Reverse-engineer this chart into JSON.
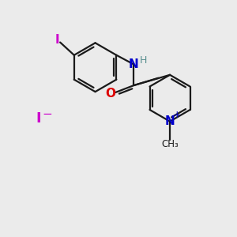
{
  "bg_color": "#ebebeb",
  "bond_color": "#1a1a1a",
  "N_color": "#0000cc",
  "O_color": "#dd0000",
  "I_color": "#cc00cc",
  "H_color": "#5a9090",
  "Iion_color": "#cc00cc",
  "line_width": 1.6,
  "figsize": [
    3.0,
    3.0
  ],
  "dpi": 100,
  "xlim": [
    0,
    10
  ],
  "ylim": [
    0,
    10
  ]
}
